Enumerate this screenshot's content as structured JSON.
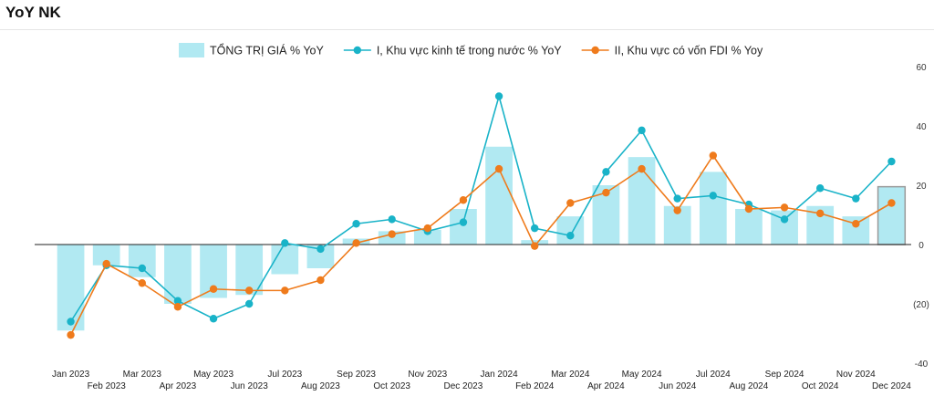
{
  "chart_data": {
    "type": "bar+line",
    "title": "YoY NK",
    "categories": [
      "Jan 2023",
      "Feb 2023",
      "Mar 2023",
      "Apr 2023",
      "May 2023",
      "Jun 2023",
      "Jul 2023",
      "Aug 2023",
      "Sep 2023",
      "Oct 2023",
      "Nov 2023",
      "Dec 2023",
      "Jan 2024",
      "Feb 2024",
      "Mar 2024",
      "Apr 2024",
      "May 2024",
      "Jun 2024",
      "Jul 2024",
      "Aug 2024",
      "Sep 2024",
      "Oct 2024",
      "Nov 2024",
      "Dec 2024"
    ],
    "y_axis": {
      "position": "right",
      "ylim": [
        -40,
        60
      ],
      "ticks": [
        60,
        40,
        20,
        0,
        -20,
        -40
      ],
      "tick_labels": [
        "60",
        "40",
        "20",
        "0",
        "(20)",
        "-40"
      ]
    },
    "legend": {
      "placement": "top"
    },
    "series": [
      {
        "name": "TỔNG TRỊ GIÁ % YoY",
        "kind": "bar",
        "color": "#b1e9f2",
        "values": [
          -29,
          -7,
          -11,
          -20,
          -18,
          -17,
          -10,
          -8,
          2,
          4.5,
          5,
          12,
          33,
          1.5,
          9.5,
          20,
          29.5,
          13,
          24.5,
          12,
          11.5,
          13,
          9.5,
          19.5
        ]
      },
      {
        "name": "I, Khu vực kinh tế trong nước % YoY",
        "kind": "line",
        "color": "#19b3c8",
        "values": [
          -26,
          -7,
          -8,
          -19,
          -25,
          -20,
          0.5,
          -1.5,
          7,
          8.5,
          4.5,
          7.5,
          50,
          5.5,
          3,
          24.5,
          38.5,
          15.5,
          16.5,
          13.5,
          8.5,
          19,
          15.5,
          28
        ]
      },
      {
        "name": "II, Khu vực có vốn FDI % Yoy",
        "kind": "line",
        "color": "#ef7b1c",
        "values": [
          -30.5,
          -6.5,
          -13,
          -21,
          -15,
          -15.5,
          -15.5,
          -12,
          0.5,
          3.5,
          5.5,
          15,
          25.5,
          -0.5,
          14,
          17.5,
          25.5,
          11.5,
          30,
          12,
          12.5,
          10.5,
          7,
          14
        ]
      }
    ]
  }
}
